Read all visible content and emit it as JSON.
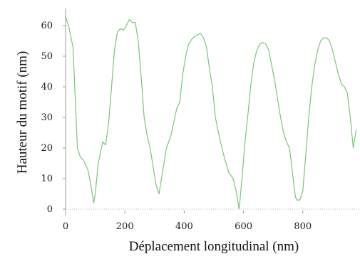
{
  "chart_data": {
    "type": "line",
    "title": "",
    "xlabel": "Déplacement longitudinal (nm)",
    "ylabel": "Hauteur du motif (nm)",
    "xlim": [
      0,
      1000
    ],
    "ylim": [
      -1,
      67
    ],
    "xticks": [
      0,
      200,
      400,
      600,
      800
    ],
    "yticks": [
      0,
      10,
      20,
      30,
      40,
      50,
      60
    ],
    "grid": false,
    "legend": "none",
    "series": [
      {
        "color": "#7cc47c",
        "x": [
          0,
          10,
          25,
          40,
          50,
          60,
          75,
          85,
          95,
          100,
          110,
          125,
          135,
          145,
          155,
          165,
          175,
          185,
          195,
          205,
          215,
          225,
          235,
          245,
          255,
          265,
          275,
          285,
          295,
          305,
          315,
          325,
          340,
          355,
          375,
          385,
          395,
          405,
          415,
          425,
          435,
          445,
          455,
          465,
          475,
          485,
          495,
          505,
          520,
          535,
          550,
          565,
          575,
          580,
          585,
          595,
          605,
          615,
          625,
          635,
          645,
          655,
          665,
          675,
          685,
          695,
          705,
          715,
          725,
          735,
          745,
          755,
          765,
          775,
          780,
          790,
          800,
          810,
          820,
          830,
          840,
          850,
          860,
          870,
          880,
          890,
          900,
          910,
          920,
          930,
          940,
          950,
          960,
          970,
          980
        ],
        "y": [
          63,
          60,
          53,
          20,
          17,
          16,
          13,
          8,
          2,
          5,
          15,
          22,
          21,
          28,
          40,
          52,
          58,
          59,
          58.5,
          60,
          62,
          61,
          61,
          55,
          43,
          30,
          24,
          20,
          14,
          8,
          5,
          11,
          20,
          24,
          33,
          35,
          44,
          50,
          54,
          55.5,
          56.5,
          57,
          57.5,
          56,
          53,
          46,
          40,
          30,
          23,
          17,
          12,
          10,
          6,
          3,
          0,
          10,
          22,
          31,
          41,
          48,
          52,
          54,
          54.5,
          54,
          52,
          47,
          42,
          36,
          30,
          25,
          22,
          20,
          12,
          4,
          3,
          3,
          6,
          18,
          30,
          40,
          47,
          52,
          55,
          56,
          56,
          55,
          52,
          48,
          44,
          41,
          40,
          38,
          30,
          20,
          26
        ]
      }
    ]
  }
}
